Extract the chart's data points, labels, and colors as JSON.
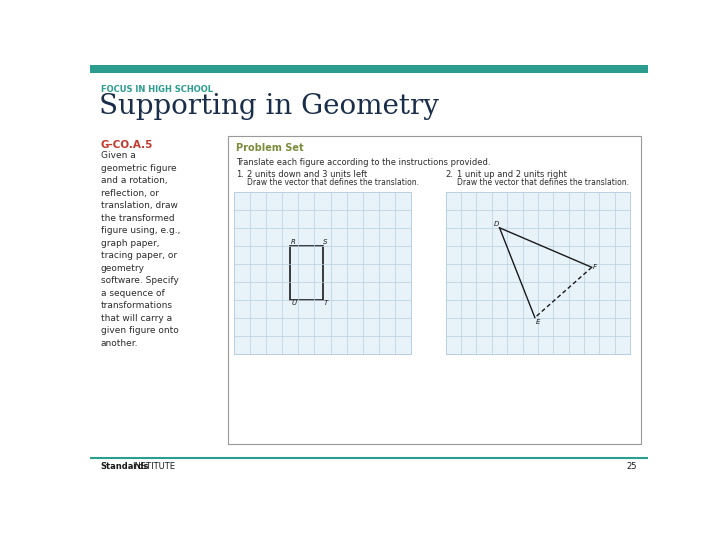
{
  "bg_color": "#ffffff",
  "top_bar_color": "#2a9d8f",
  "focus_label": "FOCUS IN HIGH SCHOOL",
  "focus_color": "#2a9d8f",
  "title": "Supporting in Geometry",
  "title_color": "#1a2e4a",
  "standard_label": "G-CO.A.5",
  "standard_color": "#c0392b",
  "body_text": "Given a\ngeometric figure\nand a rotation,\nreflection, or\ntranslation, draw\nthe transformed\nfigure using, e.g.,\ngraph paper,\ntracing paper, or\ngeometry\nsoftware. Specify\na sequence of\ntransformations\nthat will carry a\ngiven figure onto\nanother.",
  "body_color": "#2c2c2c",
  "box_border_color": "#999999",
  "box_bg": "#ffffff",
  "problem_set_label": "Problem Set",
  "problem_set_color": "#7a8c3a",
  "instruction": "Translate each figure according to the instructions provided.",
  "item1_num": "1.",
  "item1_main": "2 units down and 3 units left",
  "item1_sub": "Draw the vector that defines the translation.",
  "item2_num": "2.",
  "item2_main": "1 unit up and 2 units right",
  "item2_sub": "Draw the vector that defines the translation.",
  "grid_line_color": "#b8cfe0",
  "grid_bg": "#e8f2f9",
  "rect_color": "#1a1a1a",
  "triangle_color": "#1a1a1a",
  "footer_line_color": "#2a9d8f",
  "footer_bold": "Standards",
  "footer_normal": "INSTITUTE",
  "footer_page": "25",
  "footer_color": "#1a1a1a"
}
